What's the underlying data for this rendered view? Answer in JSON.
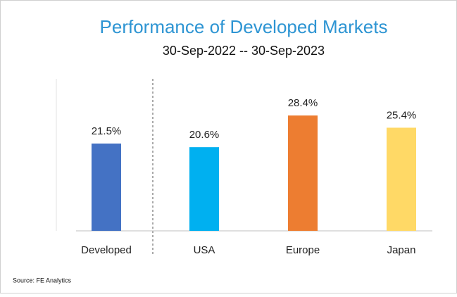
{
  "chart_data": {
    "type": "bar",
    "title": "Performance of Developed Markets",
    "subtitle": "30-Sep-2022 -- 30-Sep-2023",
    "categories": [
      "Developed",
      "USA",
      "Europe",
      "Japan"
    ],
    "values": [
      21.5,
      20.6,
      28.4,
      25.4
    ],
    "value_labels": [
      "21.5%",
      "20.6%",
      "28.4%",
      "25.4%"
    ],
    "colors": [
      "#4472c4",
      "#00b0f0",
      "#ed7d31",
      "#ffd966"
    ],
    "source": "Source: FE Analytics"
  }
}
